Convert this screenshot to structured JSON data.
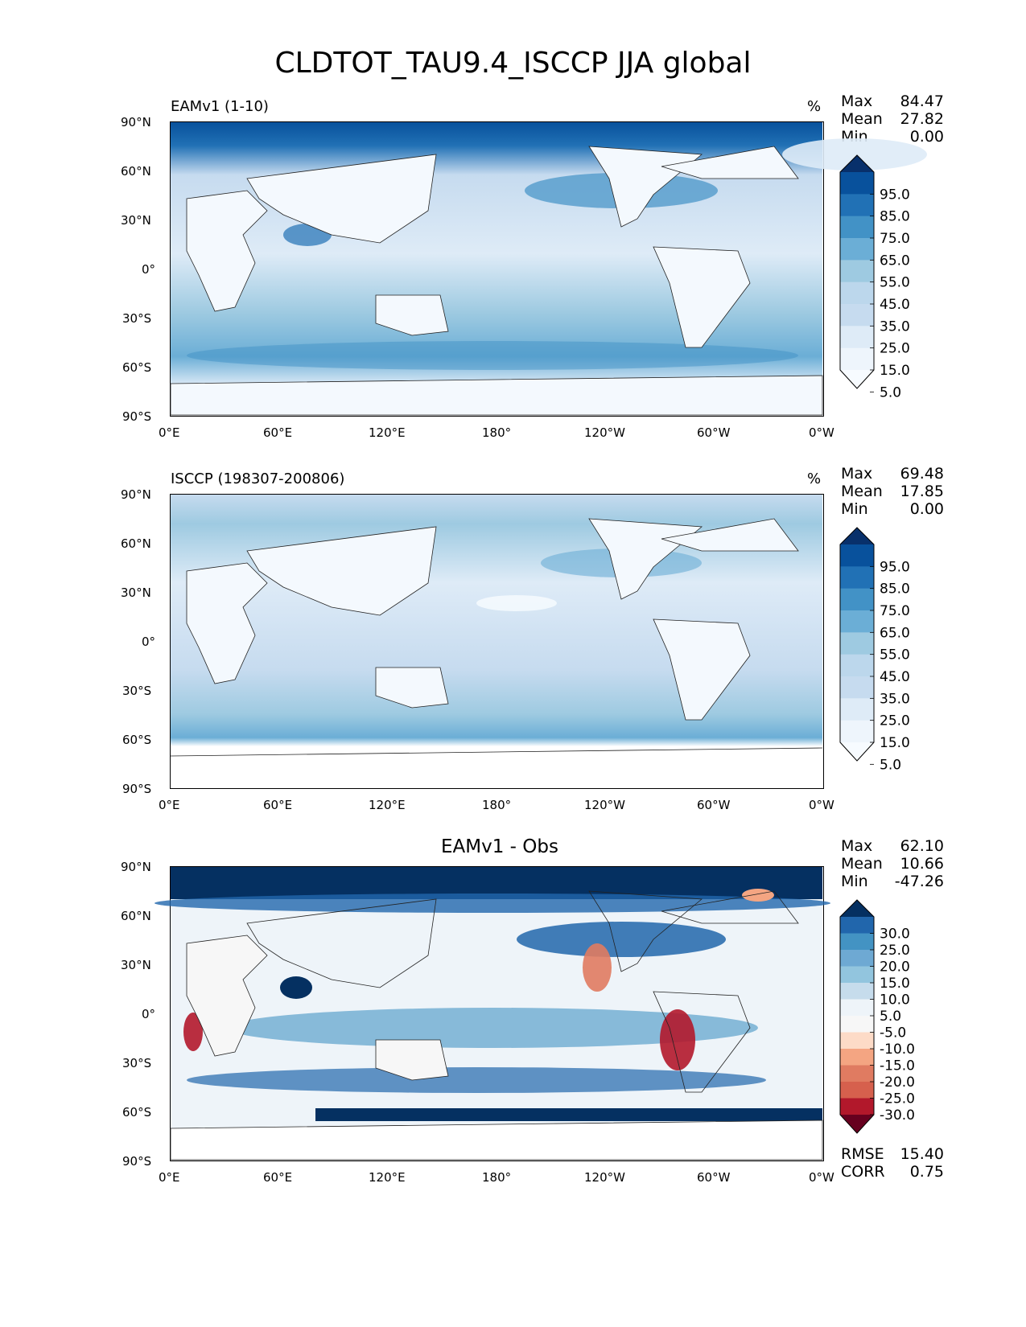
{
  "title": "CLDTOT_TAU9.4_ISCCP JJA global",
  "lat_ticks": [
    "90°N",
    "60°N",
    "30°N",
    "0°",
    "30°S",
    "60°S",
    "90°S"
  ],
  "lon_ticks": [
    "0°E",
    "60°E",
    "120°E",
    "180°",
    "120°W",
    "60°W",
    "0°W"
  ],
  "stat_labels": {
    "max": "Max",
    "mean": "Mean",
    "min": "Min",
    "rmse": "RMSE",
    "corr": "CORR"
  },
  "panels": [
    {
      "label": "EAMv1 (1-10)",
      "units": "%",
      "stats": {
        "max": "84.47",
        "mean": "27.82",
        "min": "0.00"
      },
      "colorbar": {
        "labels": [
          "95.0",
          "85.0",
          "75.0",
          "65.0",
          "55.0",
          "45.0",
          "35.0",
          "25.0",
          "15.0",
          "5.0"
        ],
        "colors": [
          "#08306b",
          "#08519c",
          "#2171b5",
          "#4292c6",
          "#6baed6",
          "#9ecae1",
          "#bcd7ec",
          "#c6dbef",
          "#deebf7",
          "#eef5fc",
          "#f7fbff"
        ]
      }
    },
    {
      "label": "ISCCP (198307-200806)",
      "units": "%",
      "stats": {
        "max": "69.48",
        "mean": "17.85",
        "min": "0.00"
      },
      "colorbar": {
        "labels": [
          "95.0",
          "85.0",
          "75.0",
          "65.0",
          "55.0",
          "45.0",
          "35.0",
          "25.0",
          "15.0",
          "5.0"
        ],
        "colors": [
          "#08306b",
          "#08519c",
          "#2171b5",
          "#4292c6",
          "#6baed6",
          "#9ecae1",
          "#bcd7ec",
          "#c6dbef",
          "#deebf7",
          "#eef5fc",
          "#f7fbff"
        ]
      }
    },
    {
      "label": "EAMv1 - Obs",
      "stats": {
        "max": "62.10",
        "mean": "10.66",
        "min": "-47.26",
        "rmse": "15.40",
        "corr": "0.75"
      },
      "colorbar": {
        "labels": [
          "30.0",
          "25.0",
          "20.0",
          "15.0",
          "10.0",
          "5.0",
          "-5.0",
          "-10.0",
          "-15.0",
          "-20.0",
          "-25.0",
          "-30.0"
        ],
        "colors": [
          "#053061",
          "#2166ac",
          "#4393c3",
          "#6ea9d3",
          "#92c5de",
          "#c6dcec",
          "#eef4f9",
          "#f7f7f7",
          "#fddbc7",
          "#f4a582",
          "#e07b61",
          "#d6604d",
          "#b2182b",
          "#67001f"
        ]
      }
    }
  ]
}
